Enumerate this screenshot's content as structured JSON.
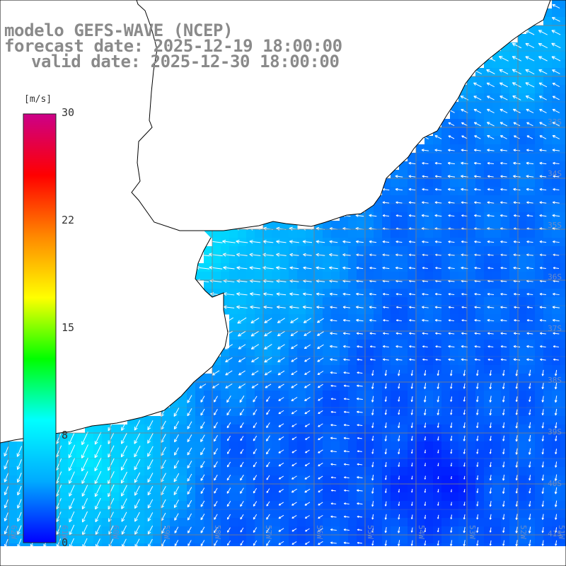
{
  "title": {
    "line1": "modelo GEFS-WAVE (NCEP)",
    "line2": "forecast date: 2025-12-19 18:00:00",
    "line3": "valid date: 2025-12-30 18:00:00"
  },
  "colorbar": {
    "unit": "[m/s]",
    "ticks": [
      {
        "label": "30",
        "value": 30
      },
      {
        "label": "22",
        "value": 22
      },
      {
        "label": "15",
        "value": 15
      },
      {
        "label": "8",
        "value": 8
      },
      {
        "label": "0",
        "value": 0
      }
    ],
    "range": [
      0,
      30
    ],
    "stops": [
      "#0000ff",
      "#00aaff",
      "#00ffff",
      "#00ff00",
      "#ffff00",
      "#ff8800",
      "#ff0000",
      "#cc0088"
    ]
  },
  "latitude_labels": [
    "33S",
    "34S",
    "35S",
    "36S",
    "37S",
    "38S",
    "39S",
    "40S",
    "41S"
  ],
  "longitude_labels": [
    "62W",
    "61W",
    "60W",
    "59W",
    "58W",
    "57W",
    "56W",
    "55W",
    "54W",
    "53W",
    "52W",
    "51W"
  ],
  "map_extent": {
    "lon": [
      -62.5,
      -50.5
    ],
    "lat": [
      -41.5,
      -30.5
    ]
  },
  "colors": {
    "land": "#ffffff",
    "coastline": "#000000",
    "grid": "#808080",
    "arrows": "#ffffff",
    "title": "#8a8a8a"
  },
  "field": {
    "variable": "wind speed",
    "units": "m/s",
    "mean_direction": "toward west / south-west",
    "min_speed": 0,
    "max_speed": 10
  }
}
